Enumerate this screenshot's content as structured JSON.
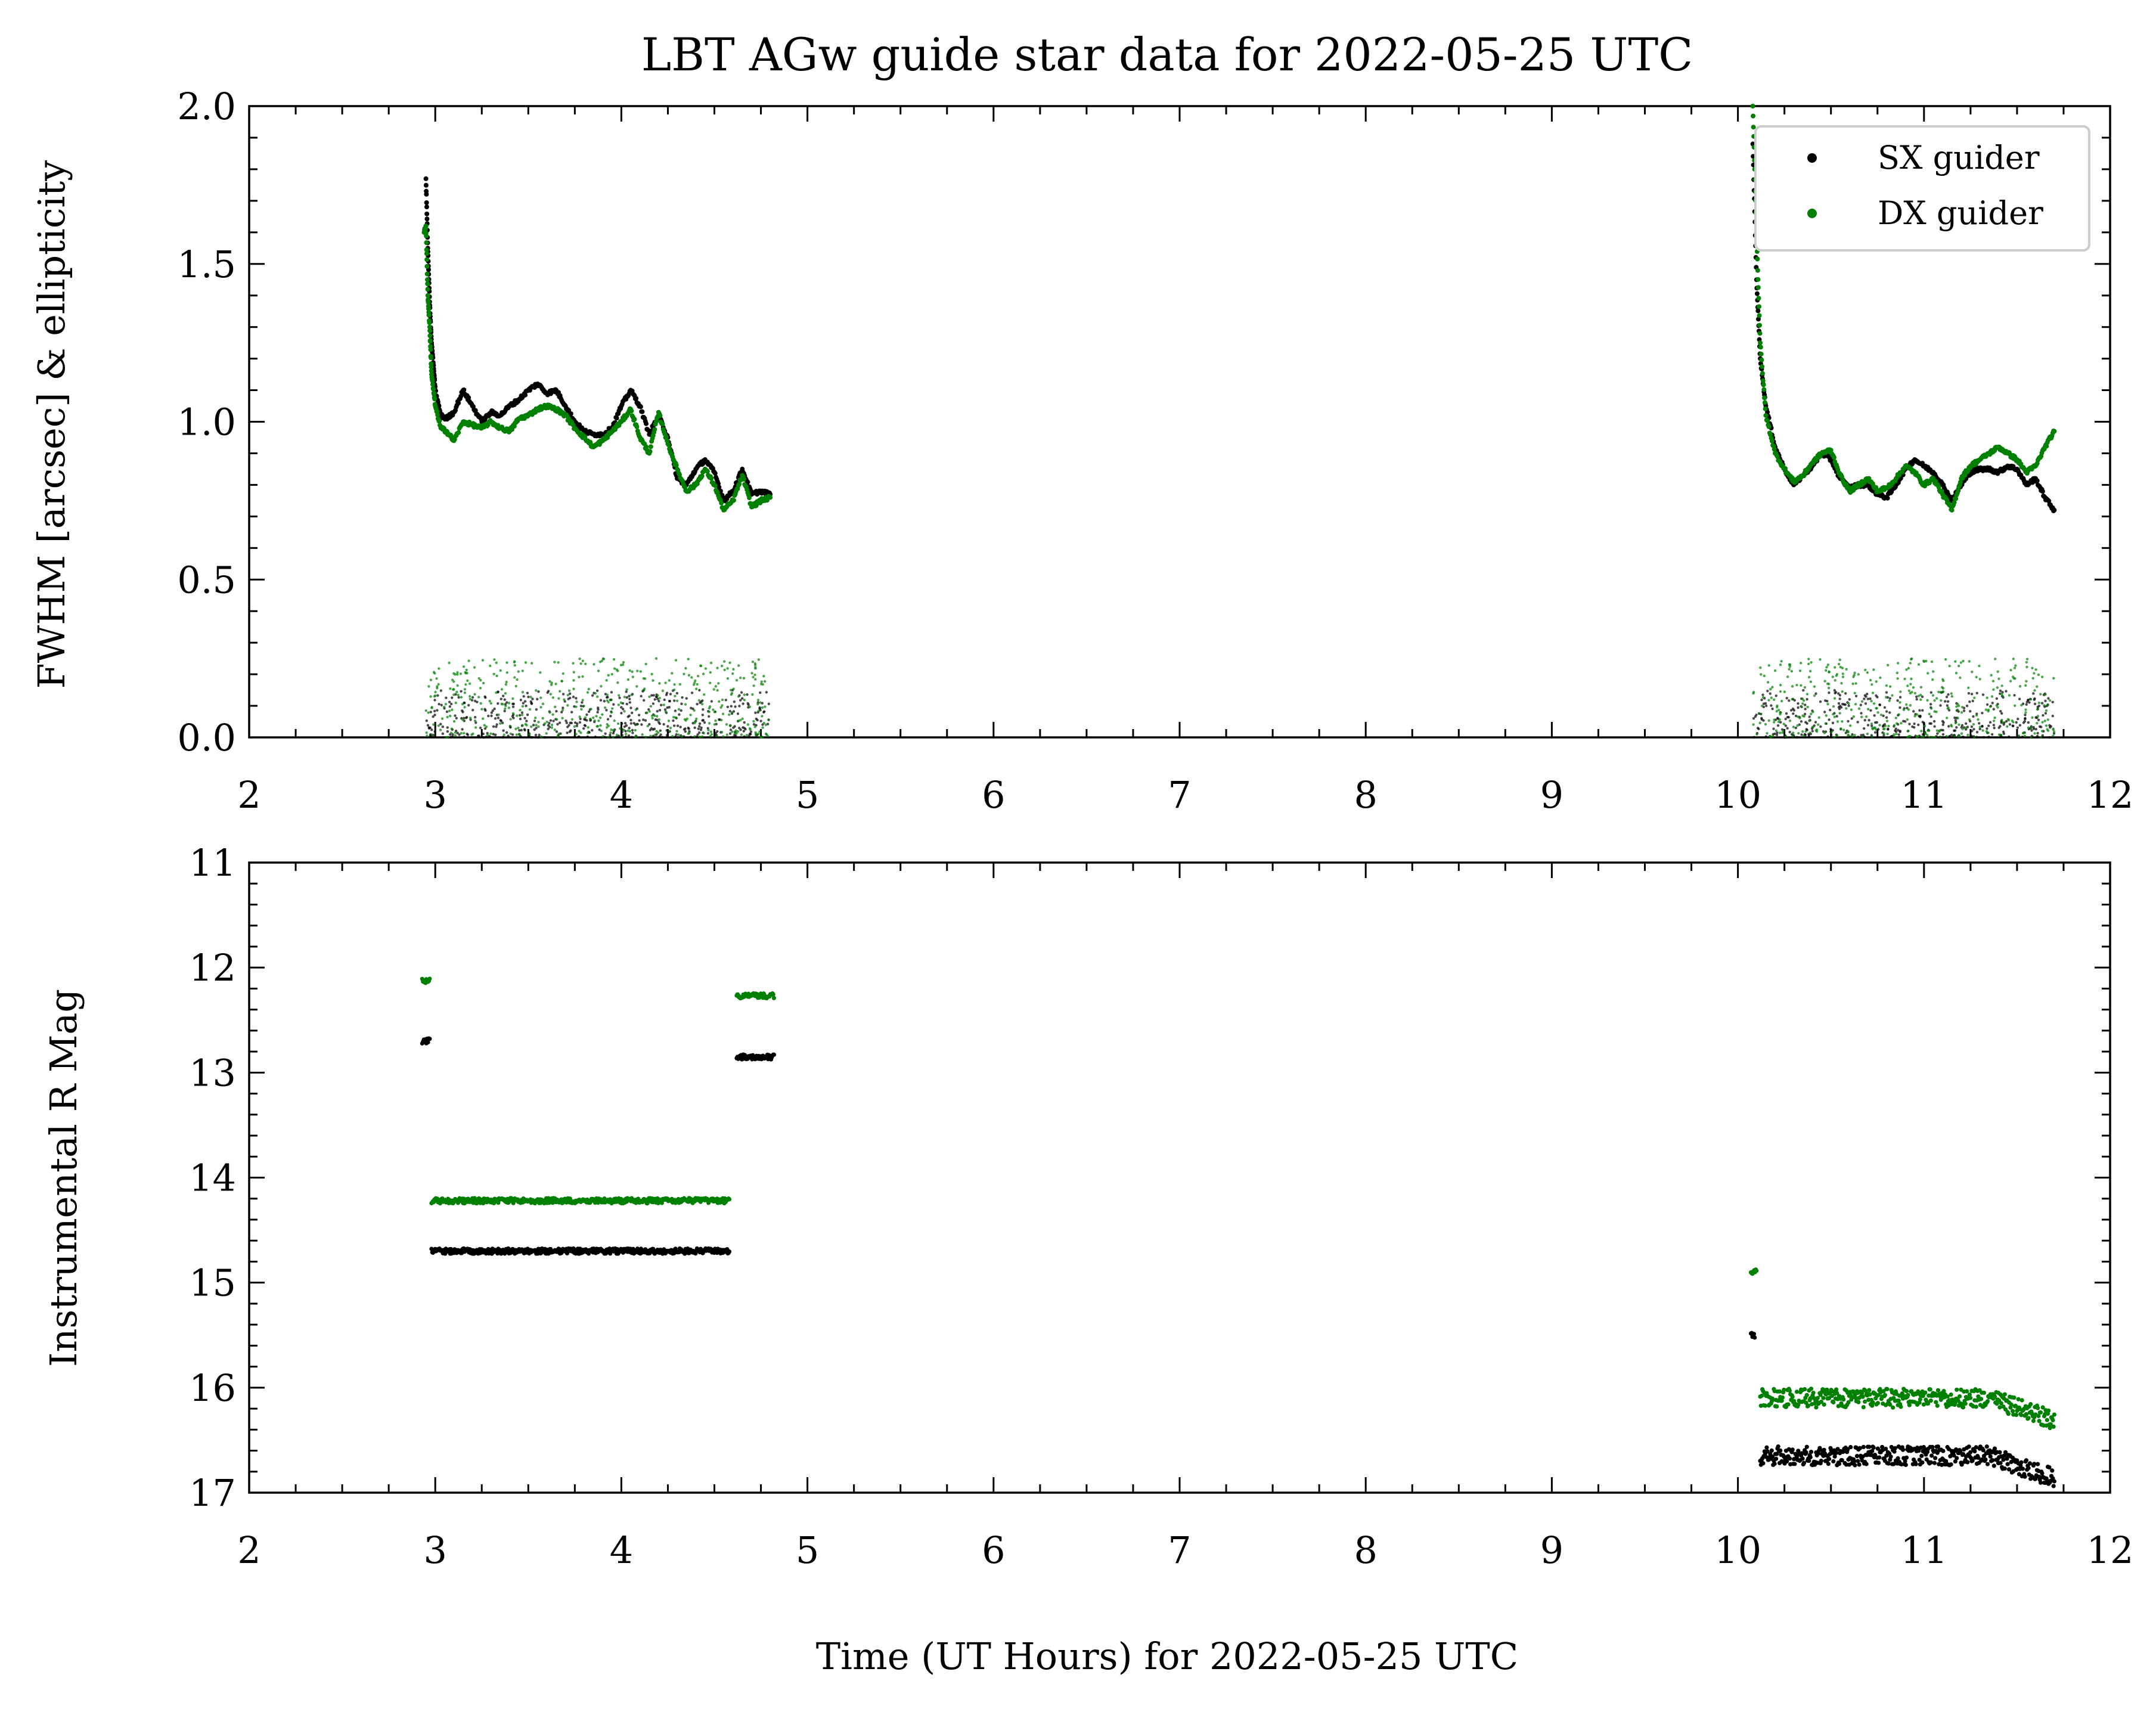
{
  "chart_data": [
    {
      "type": "scatter",
      "title": "LBT AGw guide star data for 2022-05-25 UTC",
      "xlabel": "",
      "ylabel": "FWHM [arcsec] & ellipticity",
      "xlim": [
        2,
        12
      ],
      "ylim": [
        0.0,
        2.0
      ],
      "x_ticks": [
        "2",
        "3",
        "4",
        "5",
        "6",
        "7",
        "8",
        "9",
        "10",
        "11",
        "12"
      ],
      "y_ticks": [
        "0.0",
        "0.5",
        "1.0",
        "1.5",
        "2.0"
      ],
      "y_tick_values": [
        0.0,
        0.5,
        1.0,
        1.5,
        2.0
      ],
      "grid": false,
      "legend_position": "top-right",
      "legend": [
        "SX guider",
        "DX guider"
      ],
      "series": [
        {
          "name": "SX guider",
          "color": "#000000",
          "measure": "FWHM",
          "points": [
            [
              2.95,
              1.77
            ],
            [
              2.96,
              1.55
            ],
            [
              2.97,
              1.38
            ],
            [
              2.98,
              1.25
            ],
            [
              2.99,
              1.18
            ],
            [
              3.0,
              1.1
            ],
            [
              3.03,
              1.02
            ],
            [
              3.06,
              1.01
            ],
            [
              3.1,
              1.03
            ],
            [
              3.15,
              1.1
            ],
            [
              3.2,
              1.05
            ],
            [
              3.25,
              1.0
            ],
            [
              3.3,
              1.03
            ],
            [
              3.35,
              1.02
            ],
            [
              3.4,
              1.05
            ],
            [
              3.45,
              1.07
            ],
            [
              3.5,
              1.1
            ],
            [
              3.55,
              1.12
            ],
            [
              3.6,
              1.09
            ],
            [
              3.65,
              1.1
            ],
            [
              3.7,
              1.05
            ],
            [
              3.75,
              1.0
            ],
            [
              3.8,
              0.97
            ],
            [
              3.85,
              0.96
            ],
            [
              3.9,
              0.96
            ],
            [
              3.95,
              0.98
            ],
            [
              4.0,
              1.05
            ],
            [
              4.05,
              1.1
            ],
            [
              4.1,
              1.05
            ],
            [
              4.15,
              0.96
            ],
            [
              4.2,
              1.02
            ],
            [
              4.25,
              0.95
            ],
            [
              4.3,
              0.82
            ],
            [
              4.35,
              0.8
            ],
            [
              4.4,
              0.85
            ],
            [
              4.45,
              0.88
            ],
            [
              4.5,
              0.84
            ],
            [
              4.55,
              0.75
            ],
            [
              4.6,
              0.78
            ],
            [
              4.65,
              0.85
            ],
            [
              4.7,
              0.77
            ],
            [
              4.75,
              0.78
            ],
            [
              4.8,
              0.77
            ],
            [
              10.08,
              1.88
            ],
            [
              10.1,
              1.45
            ],
            [
              10.12,
              1.2
            ],
            [
              10.15,
              1.05
            ],
            [
              10.2,
              0.92
            ],
            [
              10.25,
              0.85
            ],
            [
              10.3,
              0.8
            ],
            [
              10.35,
              0.83
            ],
            [
              10.4,
              0.86
            ],
            [
              10.45,
              0.9
            ],
            [
              10.5,
              0.88
            ],
            [
              10.55,
              0.82
            ],
            [
              10.6,
              0.79
            ],
            [
              10.65,
              0.8
            ],
            [
              10.7,
              0.8
            ],
            [
              10.75,
              0.77
            ],
            [
              10.8,
              0.76
            ],
            [
              10.85,
              0.8
            ],
            [
              10.9,
              0.85
            ],
            [
              10.95,
              0.88
            ],
            [
              11.0,
              0.86
            ],
            [
              11.05,
              0.84
            ],
            [
              11.1,
              0.8
            ],
            [
              11.15,
              0.75
            ],
            [
              11.2,
              0.8
            ],
            [
              11.25,
              0.84
            ],
            [
              11.3,
              0.85
            ],
            [
              11.35,
              0.85
            ],
            [
              11.4,
              0.84
            ],
            [
              11.45,
              0.86
            ],
            [
              11.5,
              0.85
            ],
            [
              11.55,
              0.8
            ],
            [
              11.6,
              0.82
            ],
            [
              11.65,
              0.76
            ],
            [
              11.7,
              0.72
            ]
          ]
        },
        {
          "name": "DX guider",
          "color": "#008000",
          "measure": "FWHM",
          "points": [
            [
              2.94,
              1.6
            ],
            [
              2.95,
              1.62
            ],
            [
              2.96,
              1.4
            ],
            [
              2.97,
              1.3
            ],
            [
              2.98,
              1.15
            ],
            [
              3.0,
              1.05
            ],
            [
              3.03,
              0.98
            ],
            [
              3.06,
              0.97
            ],
            [
              3.1,
              0.94
            ],
            [
              3.15,
              1.0
            ],
            [
              3.2,
              0.99
            ],
            [
              3.25,
              0.98
            ],
            [
              3.3,
              1.0
            ],
            [
              3.35,
              0.98
            ],
            [
              3.4,
              0.97
            ],
            [
              3.45,
              1.01
            ],
            [
              3.5,
              1.02
            ],
            [
              3.55,
              1.04
            ],
            [
              3.6,
              1.05
            ],
            [
              3.65,
              1.04
            ],
            [
              3.7,
              1.02
            ],
            [
              3.75,
              0.98
            ],
            [
              3.8,
              0.95
            ],
            [
              3.85,
              0.92
            ],
            [
              3.9,
              0.94
            ],
            [
              3.95,
              0.97
            ],
            [
              4.0,
              1.0
            ],
            [
              4.05,
              1.04
            ],
            [
              4.1,
              0.95
            ],
            [
              4.15,
              0.9
            ],
            [
              4.2,
              1.03
            ],
            [
              4.25,
              0.93
            ],
            [
              4.3,
              0.85
            ],
            [
              4.35,
              0.78
            ],
            [
              4.4,
              0.8
            ],
            [
              4.45,
              0.85
            ],
            [
              4.5,
              0.8
            ],
            [
              4.55,
              0.72
            ],
            [
              4.6,
              0.75
            ],
            [
              4.65,
              0.83
            ],
            [
              4.7,
              0.73
            ],
            [
              4.75,
              0.75
            ],
            [
              4.8,
              0.76
            ],
            [
              10.08,
              2.0
            ],
            [
              10.1,
              1.6
            ],
            [
              10.12,
              1.25
            ],
            [
              10.15,
              1.02
            ],
            [
              10.2,
              0.9
            ],
            [
              10.25,
              0.85
            ],
            [
              10.3,
              0.81
            ],
            [
              10.35,
              0.83
            ],
            [
              10.4,
              0.87
            ],
            [
              10.45,
              0.9
            ],
            [
              10.5,
              0.91
            ],
            [
              10.55,
              0.83
            ],
            [
              10.6,
              0.78
            ],
            [
              10.65,
              0.8
            ],
            [
              10.7,
              0.82
            ],
            [
              10.75,
              0.78
            ],
            [
              10.8,
              0.79
            ],
            [
              10.85,
              0.82
            ],
            [
              10.9,
              0.86
            ],
            [
              10.95,
              0.84
            ],
            [
              11.0,
              0.8
            ],
            [
              11.05,
              0.82
            ],
            [
              11.1,
              0.77
            ],
            [
              11.15,
              0.72
            ],
            [
              11.2,
              0.82
            ],
            [
              11.25,
              0.86
            ],
            [
              11.3,
              0.88
            ],
            [
              11.35,
              0.9
            ],
            [
              11.4,
              0.92
            ],
            [
              11.45,
              0.9
            ],
            [
              11.5,
              0.88
            ],
            [
              11.55,
              0.84
            ],
            [
              11.6,
              0.86
            ],
            [
              11.65,
              0.92
            ],
            [
              11.7,
              0.97
            ]
          ]
        },
        {
          "name": "SX guider",
          "color": "#000000",
          "measure": "ellipticity",
          "x_ranges": [
            [
              2.95,
              4.8
            ],
            [
              10.08,
              11.7
            ]
          ],
          "values_range": [
            0.0,
            0.15
          ]
        },
        {
          "name": "DX guider",
          "color": "#008000",
          "measure": "ellipticity",
          "x_ranges": [
            [
              2.95,
              4.8
            ],
            [
              10.08,
              11.7
            ]
          ],
          "values_range": [
            0.0,
            0.25
          ]
        }
      ]
    },
    {
      "type": "scatter",
      "xlabel": "Time (UT Hours) for 2022-05-25 UTC",
      "ylabel": "Instrumental R Mag",
      "xlim": [
        2,
        12
      ],
      "ylim": [
        17,
        11
      ],
      "y_inverted": true,
      "x_ticks": [
        "2",
        "3",
        "4",
        "5",
        "6",
        "7",
        "8",
        "9",
        "10",
        "11",
        "12"
      ],
      "y_ticks": [
        "11",
        "12",
        "13",
        "14",
        "15",
        "16",
        "17"
      ],
      "y_tick_values": [
        11,
        12,
        13,
        14,
        15,
        16,
        17
      ],
      "grid": false,
      "series": [
        {
          "name": "SX guider",
          "color": "#000000",
          "segments": [
            {
              "x": [
                2.93,
                2.97
              ],
              "y": 12.7
            },
            {
              "x": [
                2.98,
                4.58
              ],
              "y": 14.7
            },
            {
              "x": [
                4.62,
                4.82
              ],
              "y": 12.85
            },
            {
              "x": [
                10.07,
                10.09
              ],
              "y": 15.5
            },
            {
              "x": [
                10.12,
                11.7
              ],
              "y": 16.65
            }
          ]
        },
        {
          "name": "DX guider",
          "color": "#008000",
          "segments": [
            {
              "x": [
                2.93,
                2.97
              ],
              "y": 12.13
            },
            {
              "x": [
                2.98,
                4.58
              ],
              "y": 14.22
            },
            {
              "x": [
                4.62,
                4.82
              ],
              "y": 12.27
            },
            {
              "x": [
                10.07,
                10.1
              ],
              "y": 14.9
            },
            {
              "x": [
                10.12,
                11.7
              ],
              "y": 16.1
            }
          ]
        }
      ]
    }
  ]
}
